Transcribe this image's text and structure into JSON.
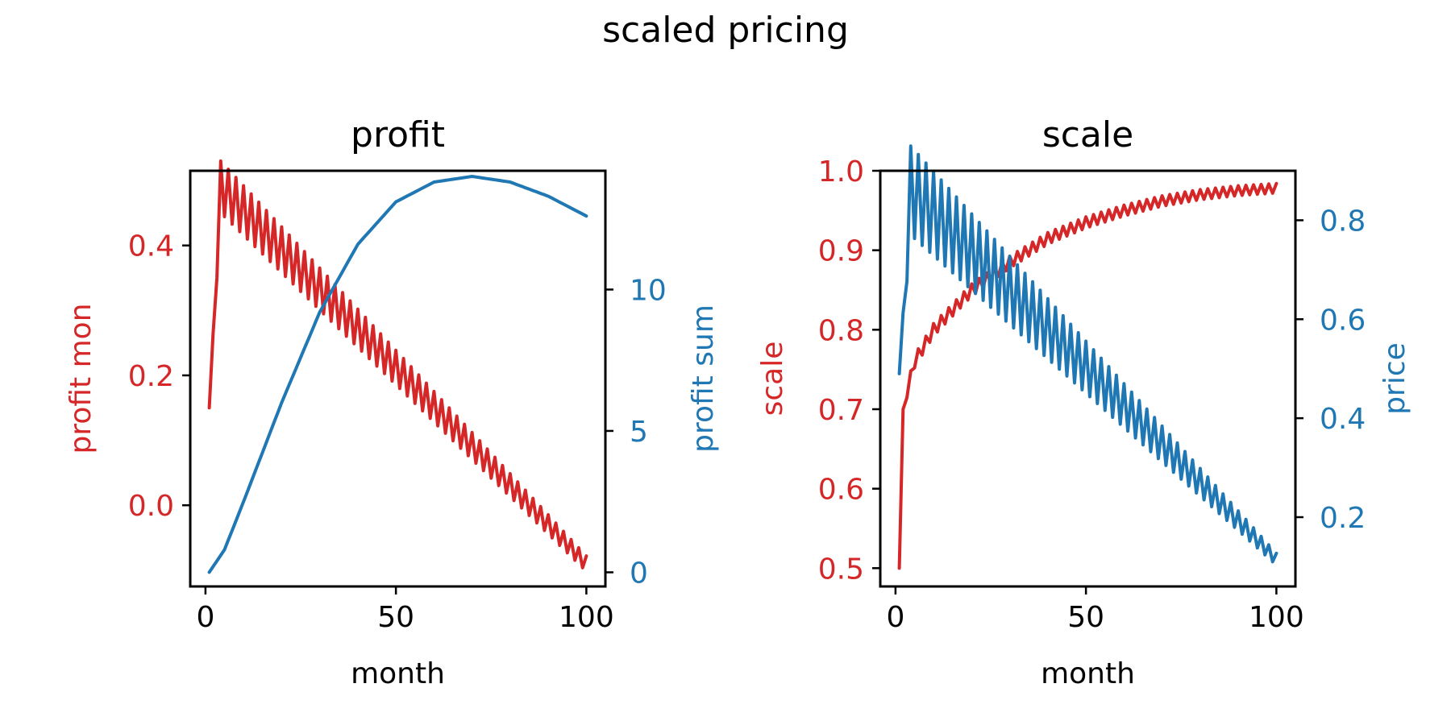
{
  "figure": {
    "title": "scaled pricing"
  },
  "colors": {
    "red": "#d62728",
    "blue": "#1f77b4",
    "axis": "#000000"
  },
  "chart_data": [
    {
      "type": "line",
      "title": "profit",
      "xlabel": "month",
      "ylabel_left": "profit mon",
      "ylabel_right": "profit sum",
      "xlim": [
        -4,
        105
      ],
      "ylim_left": [
        -0.125,
        0.515
      ],
      "ylim_right": [
        -0.5,
        14.2
      ],
      "xticks": [
        0,
        50,
        100
      ],
      "yticks_left": [
        0.0,
        0.2,
        0.4
      ],
      "yticks_right": [
        0,
        5,
        10
      ],
      "xtick_labels": [
        "0",
        "50",
        "100"
      ],
      "ytick_labels_left": [
        "0.0",
        "0.2",
        "0.4"
      ],
      "ytick_labels_right": [
        "0",
        "5",
        "10"
      ],
      "series": [
        {
          "axis": "left",
          "color": "red",
          "x": [
            1,
            4,
            100
          ],
          "y": [
            0.15,
            0.49,
            -0.09
          ],
          "oscillation_amplitude": [
            0,
            0.04,
            0.012
          ]
        },
        {
          "axis": "right",
          "color": "blue",
          "x": [
            1,
            5,
            10,
            20,
            30,
            40,
            50,
            60,
            70,
            80,
            90,
            100
          ],
          "y": [
            0.0,
            0.8,
            2.5,
            6.0,
            9.2,
            11.6,
            13.1,
            13.8,
            14.0,
            13.8,
            13.3,
            12.6
          ]
        }
      ]
    },
    {
      "type": "line",
      "title": "scale",
      "xlabel": "month",
      "ylabel_left": "scale",
      "ylabel_right": "price",
      "xlim": [
        -4,
        105
      ],
      "ylim_left": [
        0.477,
        1.0
      ],
      "ylim_right": [
        0.06,
        0.9
      ],
      "xticks": [
        0,
        50,
        100
      ],
      "yticks_left": [
        0.5,
        0.6,
        0.7,
        0.8,
        0.9,
        1.0
      ],
      "yticks_right": [
        0.2,
        0.4,
        0.6,
        0.8
      ],
      "xtick_labels": [
        "0",
        "50",
        "100"
      ],
      "ytick_labels_left": [
        "0.5",
        "0.6",
        "0.7",
        "0.8",
        "0.9",
        "1.0"
      ],
      "ytick_labels_right": [
        "0.2",
        "0.4",
        "0.6",
        "0.8"
      ],
      "series": [
        {
          "axis": "left",
          "color": "red",
          "x": [
            1,
            2,
            5,
            10,
            20,
            30,
            40,
            50,
            60,
            70,
            80,
            90,
            100
          ],
          "y": [
            0.5,
            0.7,
            0.76,
            0.8,
            0.85,
            0.885,
            0.915,
            0.935,
            0.95,
            0.962,
            0.97,
            0.975,
            0.978
          ],
          "oscillation_amplitude": [
            0,
            0.008,
            0.006
          ]
        },
        {
          "axis": "right",
          "color": "blue",
          "x": [
            1,
            4,
            100
          ],
          "y": [
            0.49,
            0.86,
            0.115
          ],
          "oscillation_amplitude": [
            0,
            0.09,
            0.012
          ]
        }
      ]
    }
  ]
}
